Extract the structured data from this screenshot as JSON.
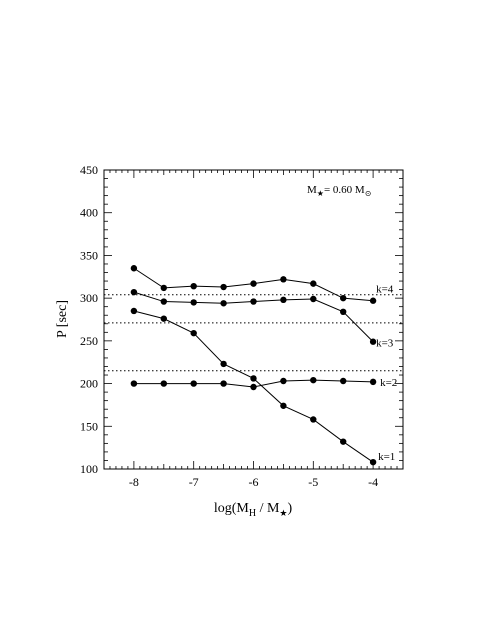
{
  "chart_data": {
    "type": "line",
    "xlabel": "log(M",
    "xlabel_sub": "H",
    "xlabel_mid": " / M",
    "xlabel_star": "★",
    "xlabel_end": ")",
    "ylabel": "P  [sec]",
    "xlim": [
      -8.5,
      -3.5
    ],
    "ylim": [
      100,
      450
    ],
    "xticks": [
      -8,
      -7,
      -6,
      -5,
      -4
    ],
    "xtick_labels": [
      "-8",
      "-7",
      "-6",
      "-5",
      "-4"
    ],
    "yticks": [
      100,
      150,
      200,
      250,
      300,
      350,
      400,
      450
    ],
    "ytick_labels": [
      "100",
      "150",
      "200",
      "250",
      "300",
      "350",
      "400",
      "450"
    ],
    "annotation": {
      "text_pre": "M",
      "star": "★",
      "text_mid": "= 0.60 M",
      "sun": "⊙"
    },
    "x": [
      -8,
      -7.5,
      -7,
      -6.5,
      -6,
      -5.5,
      -5,
      -4.5,
      -4
    ],
    "series": [
      {
        "name": "k=1",
        "values": [
          285,
          276,
          259,
          223,
          206,
          174,
          158,
          132,
          108
        ]
      },
      {
        "name": "k=2",
        "values": [
          200,
          200,
          200,
          200,
          196,
          203,
          204,
          203,
          202
        ]
      },
      {
        "name": "k=3",
        "values": [
          307,
          296,
          295,
          294,
          296,
          298,
          299,
          284,
          249
        ]
      },
      {
        "name": "k=4",
        "values": [
          335,
          312,
          314,
          313,
          317,
          322,
          317,
          300,
          297
        ]
      }
    ],
    "reference_lines": [
      304,
      271,
      215
    ],
    "grid": false,
    "legend": "none"
  }
}
